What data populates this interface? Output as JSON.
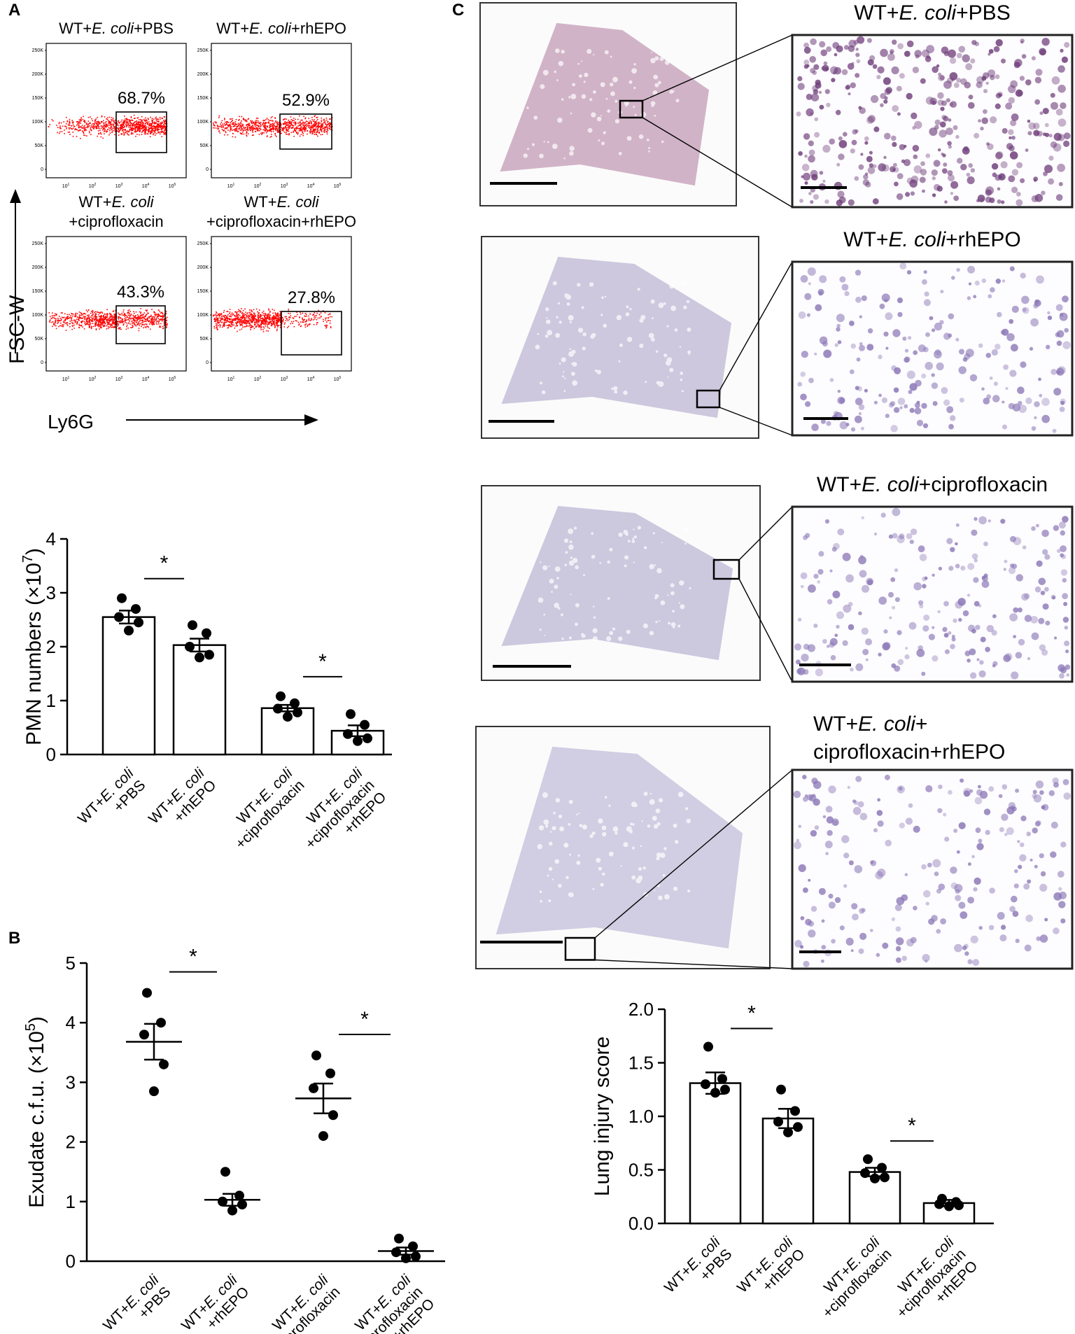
{
  "panels": {
    "A": {
      "letter": "A",
      "flow": {
        "y_axis_label": "FSC-W",
        "x_axis_label": "Ly6G",
        "y_ticks": [
          "250K",
          "200K",
          "150K",
          "100K",
          "50K",
          "0"
        ],
        "x_tick_exponents": [
          "1",
          "2",
          "3",
          "4",
          "5"
        ],
        "x_tick_base": "10",
        "plots": [
          {
            "title_parts": [
              "WT+",
              "E. coli",
              "+PBS"
            ],
            "percent": "68.7%"
          },
          {
            "title_parts": [
              "WT+",
              "E. coli",
              "+rhEPO"
            ],
            "percent": "52.9%"
          },
          {
            "title_line1_parts": [
              "WT+",
              "E. coli",
              ""
            ],
            "title_line2": "+ciprofloxacin",
            "percent": "43.3%"
          },
          {
            "title_line1_parts": [
              "WT+",
              "E. coli",
              ""
            ],
            "title_line2": "+ciprofloxacin+rhEPO",
            "percent": "27.8%"
          }
        ]
      },
      "chart_data": {
        "type": "bar",
        "ylabel": "PMN numbers (×10",
        "ylabel_exp": "7",
        "ylabel_close": ")",
        "ylim": [
          0,
          4
        ],
        "yticks": [
          0,
          1,
          2,
          3,
          4
        ],
        "categories": [
          {
            "line1_parts": [
              "WT+",
              "E. coli"
            ],
            "line2": "+PBS"
          },
          {
            "line1_parts": [
              "WT+",
              "E. coli"
            ],
            "line2": "+rhEPO"
          },
          {
            "line1_parts": [
              "WT+",
              "E. coli"
            ],
            "line2": "+ciprofloxacin"
          },
          {
            "line1_parts": [
              "WT+",
              "E. coli"
            ],
            "line2": "+ciprofloxacin",
            "line3": "+rhEPO"
          }
        ],
        "values": [
          2.55,
          2.03,
          0.86,
          0.44
        ],
        "sem": [
          0.12,
          0.12,
          0.06,
          0.1
        ],
        "points": [
          [
            2.9,
            2.7,
            2.55,
            2.45,
            2.3
          ],
          [
            2.4,
            2.25,
            2.0,
            1.85,
            1.8
          ],
          [
            1.08,
            0.95,
            0.85,
            0.78,
            0.7
          ],
          [
            0.75,
            0.55,
            0.38,
            0.3,
            0.25
          ]
        ],
        "significance": [
          {
            "between": [
              0,
              1
            ],
            "label": "*"
          },
          {
            "between": [
              2,
              3
            ],
            "label": "*"
          }
        ]
      }
    },
    "B": {
      "letter": "B",
      "chart_data": {
        "type": "scatter",
        "ylabel": "Exudate c.f.u. (×10",
        "ylabel_exp": "5",
        "ylabel_close": ")",
        "ylim": [
          0,
          5
        ],
        "yticks": [
          0,
          1,
          2,
          3,
          4,
          5
        ],
        "categories": [
          {
            "line1_parts": [
              "WT+",
              "E. coli"
            ],
            "line2": "+PBS"
          },
          {
            "line1_parts": [
              "WT+",
              "E. coli"
            ],
            "line2": "+rhEPO"
          },
          {
            "line1_parts": [
              "WT+",
              "E. coli"
            ],
            "line2": "+ciprofloxacin"
          },
          {
            "line1_parts": [
              "WT+",
              "E. coli"
            ],
            "line2": "+ciprofloxacin",
            "line3": "+rhEPO"
          }
        ],
        "means": [
          3.68,
          1.03,
          2.73,
          0.17
        ],
        "sem": [
          0.3,
          0.1,
          0.25,
          0.06
        ],
        "points": [
          [
            4.5,
            4.0,
            3.8,
            3.3,
            2.85
          ],
          [
            1.5,
            1.1,
            1.0,
            0.95,
            0.85
          ],
          [
            3.45,
            3.15,
            2.9,
            2.45,
            2.1
          ],
          [
            0.38,
            0.25,
            0.15,
            0.08,
            0.05
          ]
        ],
        "significance": [
          {
            "between": [
              0,
              1
            ],
            "label": "*"
          },
          {
            "between": [
              2,
              3
            ],
            "label": "*"
          }
        ]
      }
    },
    "C": {
      "letter": "C",
      "histology": [
        {
          "title_line1_parts": [
            "WT+",
            "E. coli",
            "+PBS"
          ],
          "tint": "#b07a9e",
          "zoom_tint": "#6e3d7a"
        },
        {
          "title_line1_parts": [
            "WT+",
            "E. coli",
            "+rhEPO"
          ],
          "tint": "#a8a0c8",
          "zoom_tint": "#b7a6cf"
        },
        {
          "title_line1_parts": [
            "WT+",
            "E. coli",
            "+ciprofloxacin"
          ],
          "tint": "#a79fc8",
          "zoom_tint": "#b9a9d1"
        },
        {
          "title_line1_parts": [
            "WT+",
            "E. coli",
            "+"
          ],
          "title_line2": "ciprofloxacin+rhEPO",
          "tint": "#b0a8cf",
          "zoom_tint": "#c3b6da"
        }
      ],
      "chart_data": {
        "type": "bar",
        "ylabel": "Lung injury score",
        "ylim": [
          0,
          2.0
        ],
        "yticks": [
          "0.0",
          "0.5",
          "1.0",
          "1.5",
          "2.0"
        ],
        "categories": [
          {
            "line1_parts": [
              "WT+",
              "E. coli"
            ],
            "line2": "+PBS"
          },
          {
            "line1_parts": [
              "WT+",
              "E. coli"
            ],
            "line2": "+rhEPO"
          },
          {
            "line1_parts": [
              "WT+",
              "E. coli"
            ],
            "line2": "+ciprofloxacin"
          },
          {
            "line1_parts": [
              "WT+",
              "E. coli"
            ],
            "line2": "+ciprofloxacin",
            "line3": "+rhEPO"
          }
        ],
        "values": [
          1.31,
          0.98,
          0.48,
          0.19
        ],
        "sem": [
          0.1,
          0.09,
          0.04,
          0.03
        ],
        "points": [
          [
            1.65,
            1.35,
            1.3,
            1.25,
            1.22
          ],
          [
            1.25,
            1.05,
            0.95,
            0.9,
            0.85
          ],
          [
            0.6,
            0.52,
            0.47,
            0.43,
            0.42
          ],
          [
            0.23,
            0.2,
            0.18,
            0.17,
            0.16
          ]
        ],
        "significance": [
          {
            "between": [
              0,
              1
            ],
            "label": "*"
          },
          {
            "between": [
              2,
              3
            ],
            "label": "*"
          }
        ]
      }
    }
  },
  "colors": {
    "flow_dots": "#ff0000",
    "axis": "#000000",
    "bar_fill": "#ffffff"
  }
}
